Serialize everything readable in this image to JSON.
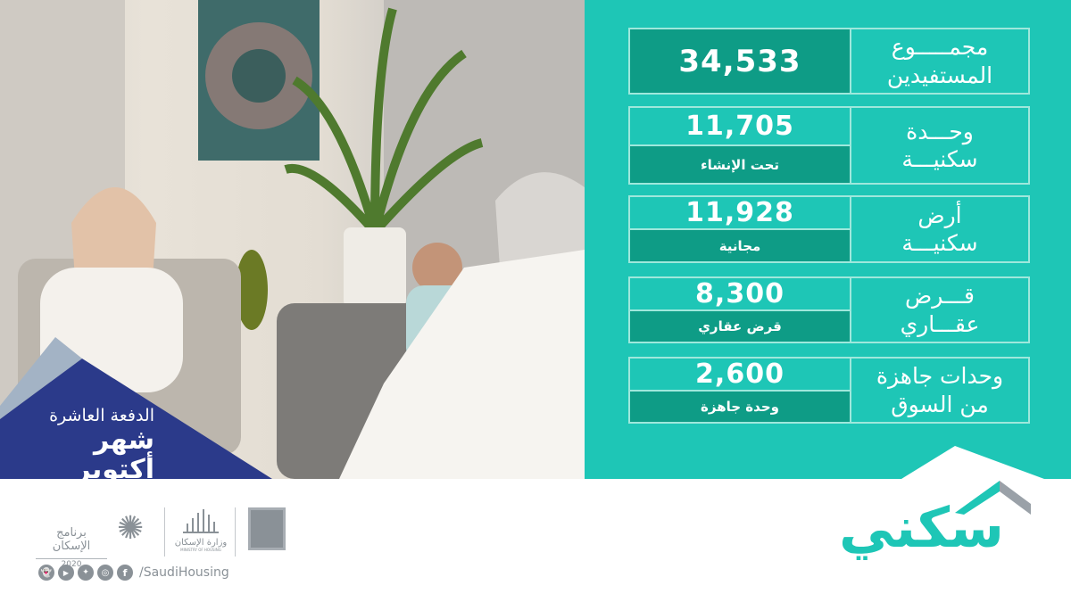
{
  "banner": {
    "line1": "الدفعة العاشرة",
    "line2": "شهر أكتوبر"
  },
  "stats": [
    {
      "label": "مجمـــــوع\nالمستفيدين",
      "value": "34,533",
      "sub": ""
    },
    {
      "label": "وحـــدة\nسكنيـــة",
      "value": "11,705",
      "sub": "تحت الإنشاء"
    },
    {
      "label": "أرض\nسكنيـــة",
      "value": "11,928",
      "sub": "مجانية"
    },
    {
      "label": "قـــرض\nعقـــاري",
      "value": "8,300",
      "sub": "قرض عقاري"
    },
    {
      "label": "وحدات جاهزة\nمن السوق",
      "value": "2,600",
      "sub": "وحدة جاهزة"
    }
  ],
  "brand": {
    "logo_text": "سكني",
    "program": "برنامج الإسكان",
    "program_year": "2020",
    "ministry_ar": "وزارة الإسكان",
    "ministry_en": "MINISTRY OF HOUSING",
    "handle": "/SaudiHousing"
  },
  "social_icons": [
    "snapchat-icon",
    "youtube-icon",
    "twitter-icon",
    "instagram-icon",
    "facebook-icon"
  ],
  "colors": {
    "teal": "#1ec6b6",
    "dark_teal": "#0e9c86",
    "navy": "#2b3a8a",
    "gray": "#8a9197"
  }
}
